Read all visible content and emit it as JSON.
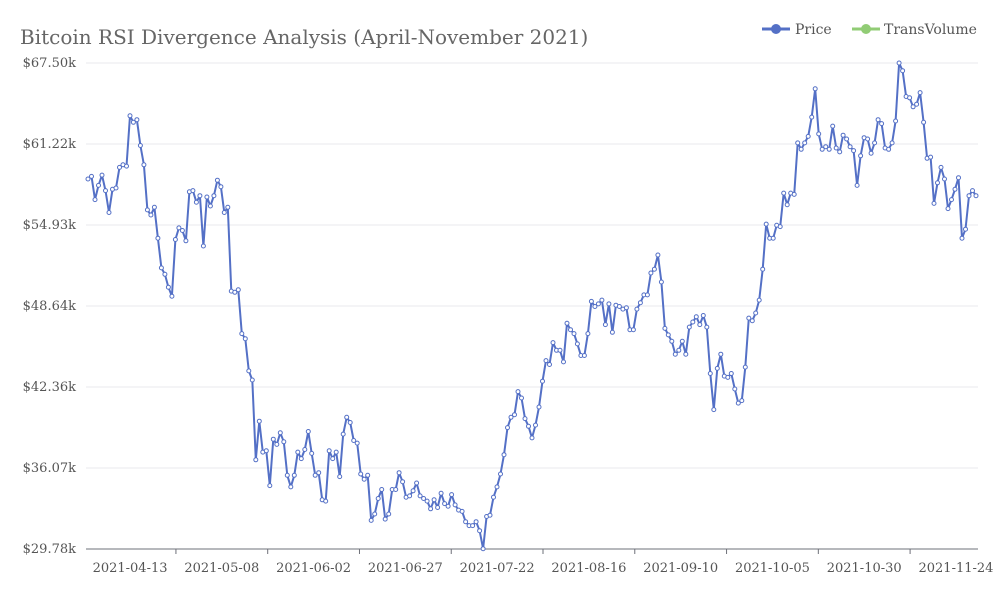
{
  "chart_data": {
    "type": "line",
    "title": "Bitcoin RSI Divergence Analysis (April-November 2021)",
    "xlabel": "",
    "ylabel": "",
    "y_tick_labels": [
      "$29.78k",
      "$36.07k",
      "$42.36k",
      "$48.64k",
      "$54.93k",
      "$61.22k",
      "$67.50k"
    ],
    "ylim": [
      29.78,
      67.5
    ],
    "x_tick_labels": [
      "2021-04-13",
      "2021-05-08",
      "2021-06-02",
      "2021-06-27",
      "2021-07-22",
      "2021-08-16",
      "2021-09-10",
      "2021-10-05",
      "2021-10-30",
      "2021-11-24"
    ],
    "legend": [
      "Price",
      "TransVolume"
    ],
    "legend_position": "top-right",
    "colors": {
      "Price": "#5470c6",
      "TransVolume": "#91cc75"
    },
    "x_start": "2021-04-01",
    "x_end": "2021-11-30",
    "series": [
      {
        "name": "Price",
        "values": [
          58.5,
          58.7,
          56.9,
          58.0,
          58.8,
          57.6,
          55.9,
          57.7,
          57.8,
          59.4,
          59.6,
          59.5,
          63.4,
          62.9,
          63.1,
          61.1,
          59.6,
          56.1,
          55.7,
          56.3,
          53.9,
          51.6,
          51.1,
          50.1,
          49.4,
          53.8,
          54.7,
          54.5,
          53.7,
          57.5,
          57.6,
          56.7,
          57.2,
          53.3,
          57.1,
          56.4,
          57.2,
          58.4,
          57.9,
          55.9,
          56.3,
          49.8,
          49.7,
          49.9,
          46.5,
          46.1,
          43.6,
          42.9,
          36.7,
          39.7,
          37.3,
          37.4,
          34.7,
          38.3,
          37.9,
          38.8,
          38.1,
          35.5,
          34.6,
          35.5,
          37.3,
          36.8,
          37.5,
          38.9,
          37.2,
          35.5,
          35.7,
          33.6,
          33.5,
          37.4,
          36.8,
          37.3,
          35.4,
          38.7,
          40.0,
          39.6,
          38.2,
          38.0,
          35.6,
          35.2,
          35.5,
          32.0,
          32.5,
          33.7,
          34.4,
          32.1,
          32.5,
          34.4,
          34.4,
          35.7,
          35.0,
          33.8,
          33.9,
          34.3,
          34.9,
          33.9,
          33.7,
          33.5,
          32.9,
          33.6,
          33.0,
          34.1,
          33.3,
          33.1,
          34.0,
          33.2,
          32.8,
          32.7,
          31.9,
          31.6,
          31.6,
          31.9,
          31.2,
          29.8,
          32.3,
          32.4,
          33.8,
          34.6,
          35.6,
          37.1,
          39.2,
          40.0,
          40.2,
          42.0,
          41.5,
          39.9,
          39.3,
          38.4,
          39.4,
          40.8,
          42.8,
          44.4,
          44.1,
          45.8,
          45.2,
          45.2,
          44.3,
          47.3,
          46.8,
          46.5,
          45.7,
          44.8,
          44.8,
          46.5,
          49.0,
          48.6,
          48.8,
          49.1,
          47.2,
          48.8,
          46.6,
          48.7,
          48.6,
          48.4,
          48.5,
          46.8,
          46.8,
          48.4,
          48.9,
          49.5,
          49.5,
          51.2,
          51.5,
          52.6,
          50.5,
          46.9,
          46.4,
          45.9,
          44.9,
          45.2,
          45.9,
          44.9,
          47.0,
          47.4,
          47.8,
          47.2,
          47.9,
          47.0,
          43.4,
          40.6,
          43.8,
          44.9,
          43.2,
          43.1,
          43.4,
          42.2,
          41.1,
          41.3,
          43.9,
          47.7,
          47.5,
          48.1,
          49.1,
          51.5,
          55.0,
          53.9,
          53.9,
          54.9,
          54.8,
          57.4,
          56.5,
          57.4,
          57.3,
          61.3,
          60.8,
          61.3,
          61.8,
          63.3,
          65.5,
          62.0,
          60.8,
          61.0,
          60.8,
          62.6,
          60.9,
          60.6,
          61.9,
          61.6,
          61.0,
          60.7,
          58.0,
          60.3,
          61.7,
          61.6,
          60.5,
          61.3,
          63.1,
          62.8,
          60.9,
          60.8,
          61.3,
          63.0,
          67.5,
          66.9,
          64.9,
          64.8,
          64.1,
          64.3,
          65.2,
          62.9,
          60.1,
          60.2,
          56.6,
          58.2,
          59.4,
          58.5,
          56.2,
          56.9,
          57.7,
          58.6,
          53.9,
          54.6,
          57.2,
          57.6,
          57.2
        ]
      },
      {
        "name": "TransVolume",
        "values": []
      }
    ]
  }
}
